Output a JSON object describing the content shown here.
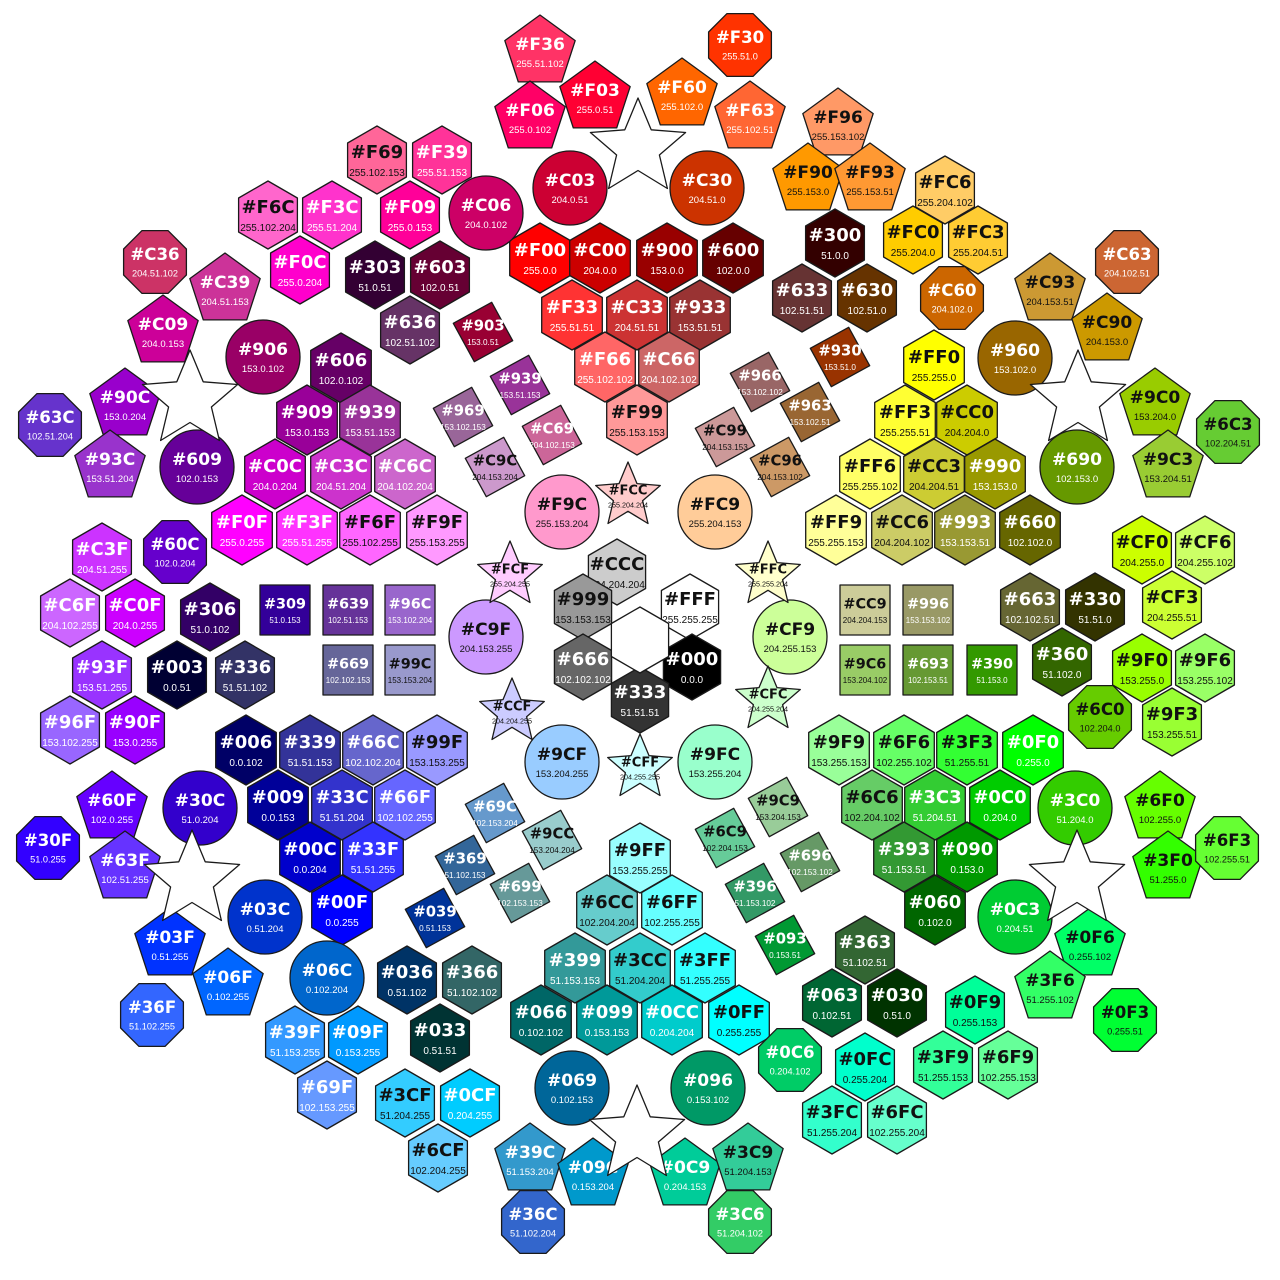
{
  "groups": [
    {
      "shape": "hexagon",
      "size": 33,
      "items": [
        [
          "CCC",
          617,
          572
        ],
        [
          "999",
          583,
          607
        ],
        [
          "FFF",
          690,
          607
        ],
        [
          "666",
          583,
          667
        ],
        [
          "000",
          692,
          667
        ],
        [
          "333",
          640,
          700
        ]
      ]
    },
    {
      "shape": "hexagon",
      "size": 35,
      "items": [
        [
          "F00",
          540,
          258
        ],
        [
          "C00",
          600,
          258
        ],
        [
          "900",
          667,
          258
        ],
        [
          "600",
          733,
          258
        ],
        [
          "F33",
          572,
          315
        ],
        [
          "C33",
          637,
          315
        ],
        [
          "933",
          700,
          315
        ],
        [
          "F66",
          605,
          367
        ],
        [
          "C66",
          669,
          367
        ],
        [
          "F99",
          637,
          420
        ]
      ]
    },
    {
      "shape": "hexagon",
      "size": 35,
      "items": [
        [
          "FF0",
          934,
          365
        ],
        [
          "FF3",
          905,
          420
        ],
        [
          "CC0",
          967,
          420
        ],
        [
          "FF6",
          870,
          474
        ],
        [
          "CC3",
          934,
          474
        ],
        [
          "990",
          995,
          474
        ],
        [
          "FF9",
          836,
          530
        ],
        [
          "CC6",
          902,
          530
        ],
        [
          "993",
          965,
          530
        ],
        [
          "660",
          1030,
          530
        ]
      ]
    },
    {
      "shape": "hexagon",
      "size": 35,
      "items": [
        [
          "606",
          341,
          368
        ],
        [
          "909",
          307,
          420
        ],
        [
          "939",
          370,
          420
        ],
        [
          "C0C",
          275,
          474
        ],
        [
          "C3C",
          341,
          474
        ],
        [
          "C6C",
          405,
          474
        ],
        [
          "F0F",
          242,
          530
        ],
        [
          "F3F",
          307,
          530
        ],
        [
          "F6F",
          370,
          530
        ],
        [
          "F9F",
          437,
          530
        ]
      ]
    },
    {
      "shape": "hexagon",
      "size": 35,
      "items": [
        [
          "006",
          246,
          750
        ],
        [
          "339",
          310,
          750
        ],
        [
          "66C",
          373,
          750
        ],
        [
          "99F",
          437,
          750
        ],
        [
          "009",
          278,
          805
        ],
        [
          "33C",
          342,
          805
        ],
        [
          "66F",
          405,
          805
        ],
        [
          "00C",
          310,
          857
        ],
        [
          "33F",
          373,
          857
        ],
        [
          "00F",
          342,
          910
        ]
      ]
    },
    {
      "shape": "hexagon",
      "size": 35,
      "items": [
        [
          "9FF",
          640,
          858
        ],
        [
          "6CC",
          607,
          910
        ],
        [
          "6FF",
          672,
          910
        ],
        [
          "399",
          575,
          968
        ],
        [
          "3CC",
          640,
          968
        ],
        [
          "3FF",
          705,
          968
        ],
        [
          "066",
          541,
          1020
        ],
        [
          "099",
          607,
          1020
        ],
        [
          "0CC",
          672,
          1020
        ],
        [
          "0FF",
          739,
          1020
        ]
      ]
    },
    {
      "shape": "hexagon",
      "size": 35,
      "items": [
        [
          "9F9",
          839,
          750
        ],
        [
          "6F6",
          904,
          750
        ],
        [
          "3F3",
          967,
          750
        ],
        [
          "0F0",
          1033,
          750
        ],
        [
          "6C6",
          872,
          805
        ],
        [
          "3C3",
          935,
          805
        ],
        [
          "0C0",
          1000,
          805
        ],
        [
          "393",
          904,
          857
        ],
        [
          "090",
          967,
          857
        ],
        [
          "060",
          935,
          910
        ]
      ]
    },
    {
      "shape": "hexagon",
      "size": 34,
      "items": [
        [
          "F69",
          377,
          160
        ],
        [
          "F39",
          442,
          160
        ],
        [
          "F6C",
          268,
          215
        ],
        [
          "F3C",
          332,
          215
        ],
        [
          "F09",
          410,
          215
        ],
        [
          "F0C",
          300,
          270
        ]
      ]
    },
    {
      "shape": "hexagon",
      "size": 34,
      "items": [
        [
          "303",
          375,
          275
        ],
        [
          "603",
          440,
          275
        ],
        [
          "636",
          410,
          330
        ]
      ]
    },
    {
      "shape": "hexagon",
      "size": 34,
      "items": [
        [
          "300",
          835,
          243
        ],
        [
          "633",
          802,
          298
        ],
        [
          "630",
          867,
          298
        ]
      ]
    },
    {
      "shape": "hexagon",
      "size": 34,
      "items": [
        [
          "FC6",
          945,
          190
        ],
        [
          "FC0",
          913,
          240
        ],
        [
          "FC3",
          978,
          240
        ]
      ]
    },
    {
      "shape": "hexagon",
      "size": 34,
      "items": [
        [
          "306",
          210,
          617
        ],
        [
          "003",
          177,
          675
        ],
        [
          "336",
          245,
          675
        ]
      ]
    },
    {
      "shape": "hexagon",
      "size": 34,
      "items": [
        [
          "C3F",
          102,
          557
        ],
        [
          "C6F",
          70,
          613
        ],
        [
          "C0F",
          135,
          613
        ]
      ]
    },
    {
      "shape": "hexagon",
      "size": 34,
      "items": [
        [
          "93F",
          102,
          675
        ],
        [
          "96F",
          70,
          730
        ],
        [
          "90F",
          135,
          730
        ]
      ]
    },
    {
      "shape": "hexagon",
      "size": 34,
      "items": [
        [
          "CF0",
          1142,
          550
        ],
        [
          "CF6",
          1205,
          550
        ],
        [
          "CF3",
          1172,
          605
        ]
      ]
    },
    {
      "shape": "hexagon",
      "size": 34,
      "items": [
        [
          "9F0",
          1142,
          668
        ],
        [
          "9F6",
          1205,
          668
        ],
        [
          "9F3",
          1172,
          722
        ]
      ]
    },
    {
      "shape": "hexagon",
      "size": 34,
      "items": [
        [
          "663",
          1030,
          607
        ],
        [
          "330",
          1095,
          607
        ],
        [
          "360",
          1062,
          662
        ]
      ]
    },
    {
      "shape": "hexagon",
      "size": 34,
      "items": [
        [
          "036",
          407,
          980
        ],
        [
          "366",
          472,
          980
        ],
        [
          "033",
          440,
          1038
        ]
      ]
    },
    {
      "shape": "hexagon",
      "size": 34,
      "items": [
        [
          "363",
          865,
          950
        ],
        [
          "063",
          832,
          1003
        ],
        [
          "030",
          897,
          1003
        ]
      ]
    },
    {
      "shape": "hexagon",
      "size": 34,
      "items": [
        [
          "39F",
          295,
          1040
        ],
        [
          "09F",
          358,
          1040
        ],
        [
          "69F",
          327,
          1095
        ]
      ]
    },
    {
      "shape": "hexagon",
      "size": 34,
      "items": [
        [
          "3CF",
          405,
          1103
        ],
        [
          "0CF",
          470,
          1103
        ],
        [
          "6CF",
          438,
          1158
        ]
      ]
    },
    {
      "shape": "hexagon",
      "size": 34,
      "items": [
        [
          "0FC",
          865,
          1067
        ],
        [
          "3FC",
          832,
          1120
        ],
        [
          "6FC",
          897,
          1120
        ]
      ]
    },
    {
      "shape": "hexagon",
      "size": 34,
      "items": [
        [
          "0F9",
          975,
          1010
        ],
        [
          "3F9",
          943,
          1065
        ],
        [
          "6F9",
          1008,
          1065
        ]
      ]
    },
    {
      "shape": "pentagon",
      "size": 42,
      "items": [
        [
          "F36",
          540,
          52
        ],
        [
          "F03",
          595,
          98
        ],
        [
          "F06",
          530,
          118
        ],
        [
          "F60",
          682,
          95
        ],
        [
          "F63",
          750,
          118
        ],
        [
          "F96",
          838,
          125
        ],
        [
          "F90",
          808,
          180
        ],
        [
          "F93",
          870,
          180
        ],
        [
          "C39",
          225,
          290
        ],
        [
          "C09",
          163,
          332
        ],
        [
          "90C",
          125,
          405
        ],
        [
          "93C",
          110,
          467
        ],
        [
          "C93",
          1050,
          290
        ],
        [
          "C90",
          1107,
          330
        ],
        [
          "9C0",
          1155,
          405
        ],
        [
          "9C3",
          1168,
          467
        ],
        [
          "60F",
          112,
          808
        ],
        [
          "63F",
          125,
          868
        ],
        [
          "6F0",
          1160,
          808
        ],
        [
          "3F0",
          1168,
          868
        ],
        [
          "03F",
          170,
          945
        ],
        [
          "06F",
          228,
          985
        ],
        [
          "0F6",
          1090,
          945
        ],
        [
          "3F6",
          1050,
          988
        ],
        [
          "39C",
          530,
          1160
        ],
        [
          "09C",
          593,
          1175
        ],
        [
          "0C9",
          685,
          1175
        ],
        [
          "3C9",
          748,
          1160
        ]
      ]
    },
    {
      "shape": "circle",
      "size": 37,
      "items": [
        [
          "C03",
          570,
          188
        ],
        [
          "C30",
          707,
          188
        ],
        [
          "C06",
          486,
          213
        ],
        [
          "906",
          263,
          357
        ],
        [
          "960",
          1015,
          358
        ],
        [
          "609",
          197,
          467
        ],
        [
          "690",
          1077,
          467
        ],
        [
          "30C",
          200,
          808
        ],
        [
          "3C0",
          1075,
          808
        ],
        [
          "03C",
          265,
          917
        ],
        [
          "0C3",
          1015,
          917
        ],
        [
          "069",
          572,
          1088
        ],
        [
          "096",
          708,
          1088
        ],
        [
          "06C",
          327,
          978
        ],
        [
          "F9C",
          562,
          512
        ],
        [
          "FC9",
          715,
          512
        ],
        [
          "C9F",
          486,
          637
        ],
        [
          "CF9",
          790,
          637
        ],
        [
          "9CF",
          562,
          762
        ],
        [
          "9FC",
          715,
          762
        ]
      ]
    },
    {
      "shape": "octagon",
      "size": 34,
      "items": [
        [
          "F30",
          740,
          45
        ],
        [
          "C36",
          155,
          262
        ],
        [
          "C60",
          952,
          298
        ],
        [
          "C63",
          1127,
          262
        ],
        [
          "63C",
          50,
          425
        ],
        [
          "6C3",
          1228,
          432
        ],
        [
          "60C",
          175,
          552
        ],
        [
          "6C0",
          1100,
          717
        ],
        [
          "30F",
          48,
          848
        ],
        [
          "6F3",
          1227,
          848
        ],
        [
          "36F",
          152,
          1015
        ],
        [
          "0F3",
          1125,
          1020
        ],
        [
          "36C",
          533,
          1222
        ],
        [
          "3C6",
          740,
          1222
        ],
        [
          "0C6",
          790,
          1060
        ]
      ]
    },
    {
      "shape": "square",
      "size": 25,
      "items": [
        [
          "309",
          285,
          610
        ],
        [
          "639",
          348,
          610
        ],
        [
          "96C",
          410,
          610
        ],
        [
          "669",
          348,
          670
        ],
        [
          "99C",
          410,
          670
        ],
        [
          "CC9",
          865,
          610
        ],
        [
          "996",
          928,
          610
        ],
        [
          "9C6",
          865,
          670
        ],
        [
          "693",
          928,
          670
        ],
        [
          "390",
          992,
          670
        ]
      ]
    },
    {
      "shape": "diamond",
      "size": 31,
      "items": [
        [
          "903",
          483,
          332
        ],
        [
          "939",
          520,
          385
        ],
        [
          "969",
          463,
          417
        ],
        [
          "C69",
          552,
          435
        ],
        [
          "C9C",
          495,
          467
        ],
        [
          "966",
          760,
          382
        ],
        [
          "930",
          840,
          357
        ],
        [
          "963",
          810,
          412
        ],
        [
          "C99",
          725,
          437
        ],
        [
          "C96",
          780,
          467
        ],
        [
          "69C",
          495,
          813
        ],
        [
          "9CC",
          552,
          840
        ],
        [
          "369",
          465,
          865
        ],
        [
          "699",
          520,
          893
        ],
        [
          "039",
          435,
          918
        ],
        [
          "9C9",
          778,
          807
        ],
        [
          "6C9",
          725,
          838
        ],
        [
          "696",
          810,
          862
        ],
        [
          "396",
          755,
          893
        ],
        [
          "093",
          785,
          945
        ]
      ]
    },
    {
      "shape": "star",
      "size": 34,
      "items": [
        [
          "FCC",
          628,
          496
        ],
        [
          "FCF",
          510,
          575
        ],
        [
          "FFC",
          768,
          575
        ],
        [
          "CCF",
          512,
          712
        ],
        [
          "CFC",
          768,
          700
        ],
        [
          "CFF",
          640,
          768
        ]
      ]
    },
    {
      "shape": "blank-star",
      "size": 50,
      "items": [
        [
          "",
          638,
          148
        ],
        [
          "",
          190,
          400
        ],
        [
          "",
          1078,
          400
        ],
        [
          "",
          192,
          880
        ],
        [
          "",
          1077,
          880
        ],
        [
          "",
          637,
          1135
        ]
      ]
    },
    {
      "shape": "blank-hexagon",
      "size": 33,
      "items": [
        [
          "",
          640,
          640
        ]
      ]
    }
  ]
}
